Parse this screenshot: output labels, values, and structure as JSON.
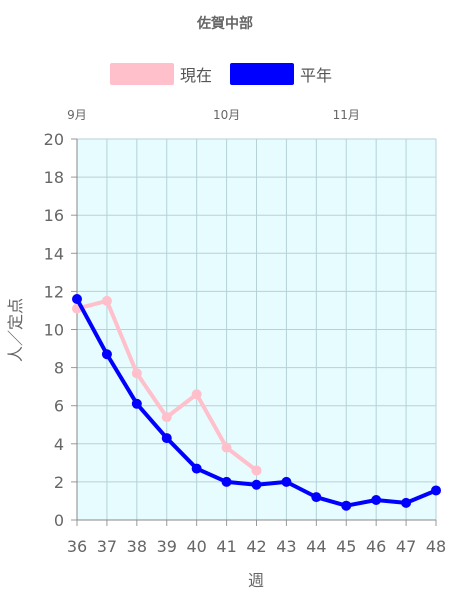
{
  "chart_data": {
    "type": "line",
    "title": "佐賀中部",
    "xlabel": "週",
    "ylabel": "人／定点",
    "ylim": [
      0,
      20
    ],
    "yticks": [
      0,
      2,
      4,
      6,
      8,
      10,
      12,
      14,
      16,
      18,
      20
    ],
    "categories": [
      "36",
      "37",
      "38",
      "39",
      "40",
      "41",
      "42",
      "43",
      "44",
      "45",
      "46",
      "47",
      "48"
    ],
    "month_labels": [
      {
        "label": "9月",
        "at": "36"
      },
      {
        "label": "10月",
        "at": "41"
      },
      {
        "label": "11月",
        "at": "45"
      }
    ],
    "grid": true,
    "legend_position": "top",
    "plot_background": "#e6fcff",
    "series": [
      {
        "name": "現在",
        "color": "#ffc0cb",
        "values": [
          11.1,
          11.5,
          7.7,
          5.4,
          6.6,
          3.8,
          2.6,
          null,
          null,
          null,
          null,
          null,
          null
        ]
      },
      {
        "name": "平年",
        "color": "#0000ff",
        "values": [
          11.6,
          8.7,
          6.1,
          4.3,
          2.7,
          2.0,
          1.85,
          2.0,
          1.2,
          0.75,
          1.05,
          0.9,
          1.55
        ]
      }
    ]
  }
}
